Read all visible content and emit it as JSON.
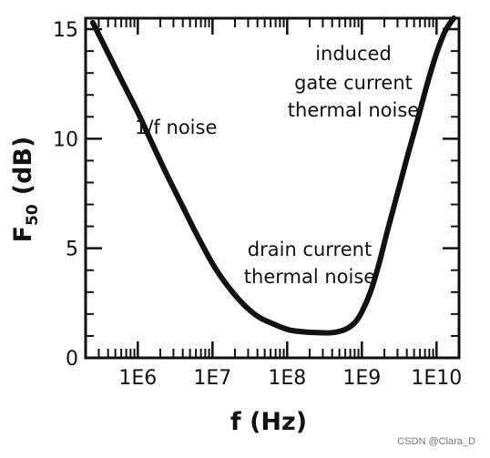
{
  "chart_data": {
    "type": "line",
    "title": "",
    "xlabel": "f (Hz)",
    "ylabel_main": "F",
    "ylabel_sub": "50",
    "ylabel_unit": "(dB)",
    "xscale": "log",
    "xlim": [
      200000,
      20000000000
    ],
    "ylim": [
      0,
      15.5
    ],
    "x_ticks": [
      {
        "value": 1000000,
        "label": "1E6"
      },
      {
        "value": 10000000,
        "label": "1E7"
      },
      {
        "value": 100000000,
        "label": "1E8"
      },
      {
        "value": 1000000000,
        "label": "1E9"
      },
      {
        "value": 10000000000,
        "label": "1E10"
      }
    ],
    "y_ticks": [
      {
        "value": 0,
        "label": "0"
      },
      {
        "value": 5,
        "label": "5"
      },
      {
        "value": 10,
        "label": "10"
      },
      {
        "value": 15,
        "label": "15"
      }
    ],
    "grid": false,
    "series": [
      {
        "x": [
          250000,
          400000,
          600000,
          1000000,
          1500000,
          2500000,
          4000000,
          6000000,
          10000000,
          15000000,
          25000000,
          40000000,
          60000000,
          100000000,
          150000000,
          250000000,
          400000000,
          600000000,
          800000000,
          1000000000,
          1300000000,
          1700000000,
          2200000000,
          3000000000,
          4000000000,
          5500000000,
          7500000000,
          10000000000,
          13000000000,
          17000000000
        ],
        "y": [
          15.3,
          13.9,
          12.7,
          11.2,
          9.9,
          8.3,
          6.9,
          5.7,
          4.3,
          3.4,
          2.5,
          1.9,
          1.6,
          1.3,
          1.2,
          1.15,
          1.15,
          1.3,
          1.6,
          2.1,
          3.0,
          4.3,
          5.8,
          7.5,
          9.1,
          10.8,
          12.5,
          13.9,
          14.9,
          15.5
        ]
      }
    ],
    "annotations": [
      {
        "lines": [
          "1/f noise"
        ]
      },
      {
        "lines": [
          "induced",
          "gate current",
          "thermal noise"
        ]
      },
      {
        "lines": [
          "drain current",
          "thermal noise"
        ]
      }
    ]
  },
  "watermark": "CSDN @Clara_D"
}
